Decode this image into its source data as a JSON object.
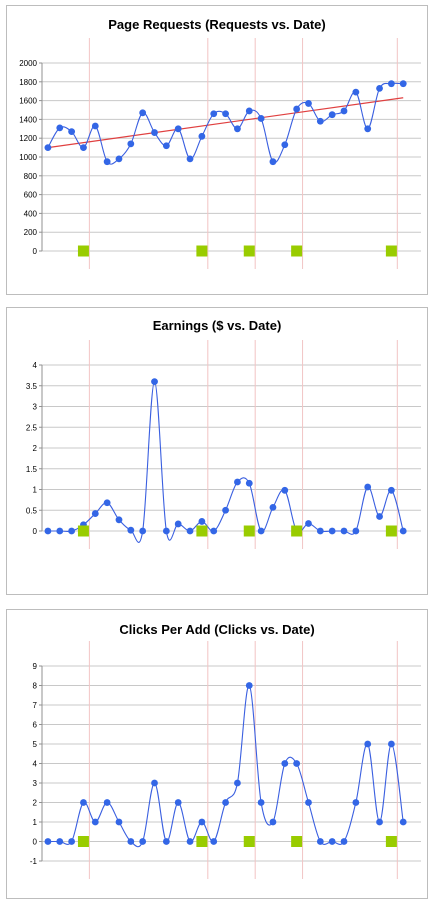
{
  "colors": {
    "series": "#3366e6",
    "series_line": "#3a5fe0",
    "trend": "#e04040",
    "marker": "#99cc00",
    "grid": "#c8c8c8",
    "vline": "#f2c4c4",
    "axis": "#909090"
  },
  "chart_data": [
    {
      "type": "line",
      "title": "Page Requests (Requests vs. Date)",
      "xlabel": "",
      "ylabel": "",
      "ylim": [
        0,
        2000
      ],
      "ystep": 200,
      "yticks": [
        "0",
        "200",
        "400",
        "600",
        "800",
        "1000",
        "1200",
        "1400",
        "1600",
        "1800",
        "2000"
      ],
      "grid": true,
      "x_count": 32,
      "series": [
        {
          "values": [
            1100,
            1310,
            1270,
            1100,
            1330,
            950,
            980,
            1140,
            1470,
            1260,
            1120,
            1300,
            980,
            1220,
            1460,
            1460,
            1300,
            1490,
            1410,
            950,
            1130,
            1510,
            1570,
            1380,
            1450,
            1490,
            1690,
            1300,
            1730,
            1780,
            1780
          ]
        }
      ],
      "trendline": {
        "from": 1100,
        "to": 1630
      },
      "markers_x": [
        3,
        13,
        17,
        21,
        29
      ],
      "vlines_x": [
        3.5,
        13.5,
        17.5,
        21.5,
        29.5
      ]
    },
    {
      "type": "line",
      "title": "Earnings ($ vs. Date)",
      "xlabel": "",
      "ylabel": "",
      "ylim": [
        0,
        4
      ],
      "ystep": 0.5,
      "yticks": [
        "0",
        "0.5",
        "1",
        "1.5",
        "2",
        "2.5",
        "3",
        "3.5",
        "4"
      ],
      "grid": true,
      "x_count": 32,
      "series": [
        {
          "values": [
            0,
            0,
            0,
            0.15,
            0.42,
            0.68,
            0.27,
            0.02,
            0,
            3.6,
            0,
            0.17,
            0,
            0.23,
            0,
            0.5,
            1.18,
            1.15,
            0,
            0.57,
            0.98,
            0,
            0.18,
            0,
            0,
            0,
            0,
            1.06,
            0.35,
            0.98,
            0
          ]
        }
      ],
      "markers_x": [
        3,
        13,
        17,
        21,
        29
      ],
      "vlines_x": [
        3.5,
        13.5,
        17.5,
        21.5,
        29.5
      ]
    },
    {
      "type": "line",
      "title": "Clicks Per Add (Clicks vs. Date)",
      "xlabel": "",
      "ylabel": "",
      "ylim": [
        -1,
        9
      ],
      "ystep": 1,
      "yticks": [
        "-1",
        "0",
        "1",
        "2",
        "3",
        "4",
        "5",
        "6",
        "7",
        "8",
        "9"
      ],
      "grid": true,
      "x_count": 32,
      "series": [
        {
          "values": [
            0,
            0,
            0,
            2,
            1,
            2,
            1,
            0,
            0,
            3,
            0,
            2,
            0,
            1,
            0,
            2,
            3,
            8,
            2,
            1,
            4,
            4,
            2,
            0,
            0,
            0,
            2,
            5,
            1,
            5,
            1
          ]
        }
      ],
      "markers_x": [
        3,
        13,
        17,
        21,
        29
      ],
      "vlines_x": [
        3.5,
        13.5,
        17.5,
        21.5,
        29.5
      ]
    }
  ]
}
